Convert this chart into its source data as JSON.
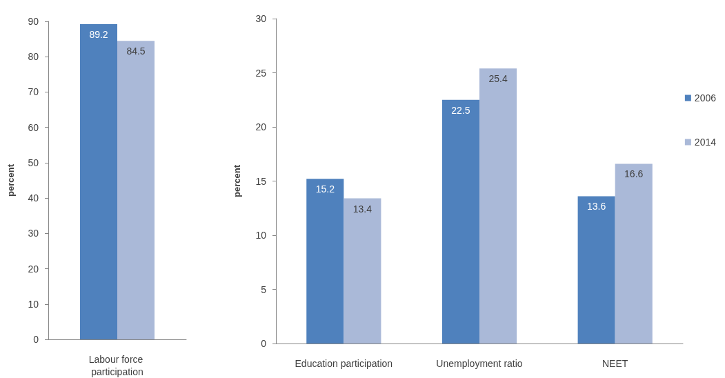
{
  "chart_data": [
    {
      "type": "bar",
      "categories": [
        "Labour force participation"
      ],
      "ylabel": "percent",
      "ylim": [
        0,
        90
      ],
      "yticks": [
        0,
        10,
        20,
        30,
        40,
        50,
        60,
        70,
        80,
        90
      ],
      "grid": false,
      "legend": false,
      "data_labels": true,
      "series": [
        {
          "color": "#4f81bd",
          "values": [
            89.2
          ]
        },
        {
          "color": "#aab9d8",
          "values": [
            84.5
          ]
        }
      ]
    },
    {
      "type": "bar",
      "categories": [
        "Education participation",
        "Unemployment ratio",
        "NEET"
      ],
      "ylabel": "percent",
      "ylim": [
        0,
        30
      ],
      "yticks": [
        0,
        5,
        10,
        15,
        20,
        25,
        30
      ],
      "grid": false,
      "legend": "right",
      "data_labels": true,
      "series": [
        {
          "name": "2006",
          "color": "#4f81bd",
          "values": [
            15.2,
            22.5,
            13.6
          ]
        },
        {
          "name": "2014",
          "color": "#aab9d8",
          "values": [
            13.4,
            25.4,
            16.6
          ]
        }
      ]
    }
  ]
}
